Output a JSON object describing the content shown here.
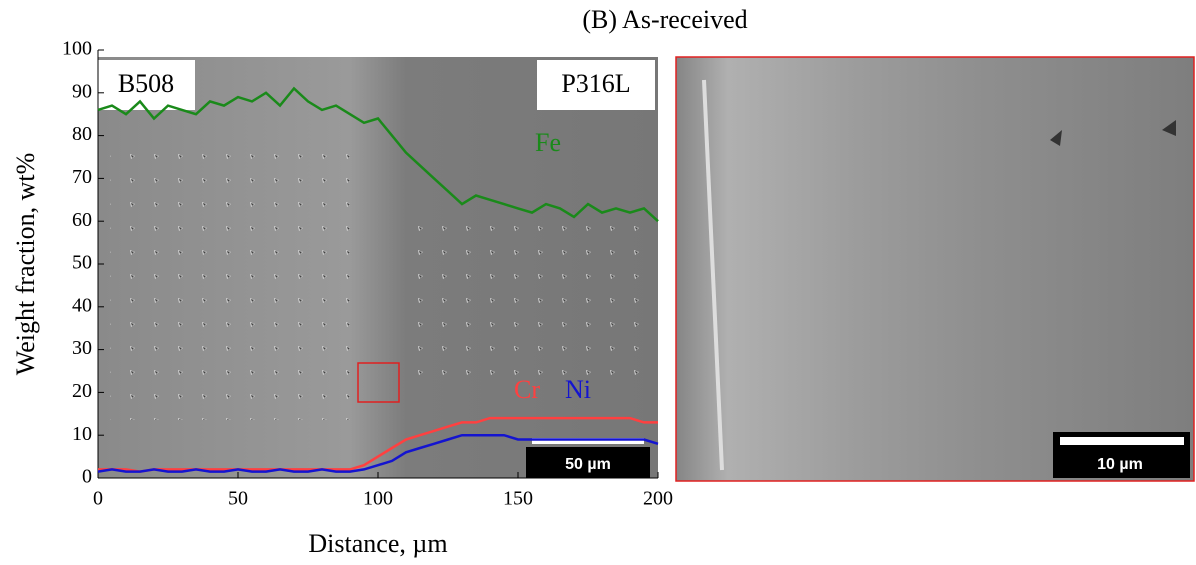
{
  "chart_data": {
    "type": "line",
    "title": "(B) As-received",
    "y_label": "Weight fraction, wt%",
    "x_label": "Distance, µm",
    "annotations": {
      "left_material": "B508",
      "right_material": "P316L",
      "scale_bar_main": "50 µm",
      "scale_bar_inset": "10 µm"
    },
    "x": [
      0,
      5,
      10,
      15,
      20,
      25,
      30,
      35,
      40,
      45,
      50,
      55,
      60,
      65,
      70,
      75,
      80,
      85,
      90,
      95,
      100,
      105,
      110,
      115,
      120,
      125,
      130,
      135,
      140,
      145,
      150,
      155,
      160,
      165,
      170,
      175,
      180,
      185,
      190,
      195,
      200
    ],
    "series": [
      {
        "name": "Fe",
        "color": "#1a8a1a",
        "values": [
          86,
          87,
          85,
          88,
          84,
          87,
          86,
          85,
          88,
          87,
          89,
          88,
          90,
          87,
          91,
          88,
          86,
          87,
          85,
          83,
          84,
          80,
          76,
          73,
          70,
          67,
          64,
          66,
          65,
          64,
          63,
          62,
          64,
          63,
          61,
          64,
          62,
          63,
          62,
          63,
          60
        ]
      },
      {
        "name": "Cr",
        "color": "#ff4040",
        "values": [
          2,
          2,
          2,
          1.5,
          2,
          2,
          2,
          2,
          2,
          2,
          2,
          2,
          2,
          2,
          2,
          2,
          2,
          2,
          2,
          3,
          5,
          7,
          9,
          10,
          11,
          12,
          13,
          13,
          14,
          14,
          14,
          14,
          14,
          14,
          14,
          14,
          14,
          14,
          14,
          13,
          13
        ]
      },
      {
        "name": "Ni",
        "color": "#1414d0",
        "values": [
          1.5,
          2,
          1.5,
          1.5,
          2,
          1.5,
          1.5,
          2,
          1.5,
          1.5,
          2,
          1.5,
          1.5,
          2,
          1.5,
          1.5,
          2,
          1.5,
          1.5,
          2,
          3,
          4,
          6,
          7,
          8,
          9,
          10,
          10,
          10,
          10,
          9,
          9,
          9,
          9,
          9,
          9,
          9,
          9,
          9,
          9,
          8
        ]
      }
    ],
    "xlim": [
      0,
      200
    ],
    "xticks": [
      0,
      50,
      100,
      150,
      200
    ],
    "ylim": [
      0,
      100
    ],
    "yticks": [
      0,
      10,
      20,
      30,
      40,
      50,
      60,
      70,
      80,
      90,
      100
    ]
  }
}
